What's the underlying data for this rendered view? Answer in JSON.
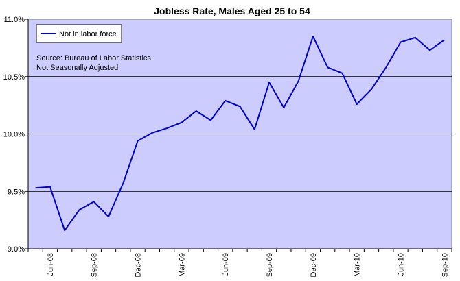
{
  "chart_data": {
    "type": "line",
    "title": "Jobless Rate, Males Aged 25 to 54",
    "xlabel": "",
    "ylabel": "",
    "ylim": [
      9.0,
      11.0
    ],
    "ytick_labels": [
      "9.0%",
      "9.5%",
      "10.0%",
      "10.5%",
      "11.0%"
    ],
    "ytick_values": [
      9.0,
      9.5,
      10.0,
      10.5,
      11.0
    ],
    "xtick_labels": [
      "Jun-08",
      "Sep-08",
      "Dec-08",
      "Mar-09",
      "Jun-09",
      "Sep-09",
      "Dec-09",
      "Mar-10",
      "Jun-10",
      "Sep-10"
    ],
    "xtick_months": [
      "2008-06",
      "2008-09",
      "2008-12",
      "2009-03",
      "2009-06",
      "2009-09",
      "2009-12",
      "2010-03",
      "2010-06",
      "2010-09"
    ],
    "grid": "horizontal",
    "legend_placement": "top-left",
    "annotation_lines": [
      "Source: Bureau of Labor Statistics",
      "Not Seasonally Adjusted"
    ],
    "months": [
      "2008-05",
      "2008-06",
      "2008-07",
      "2008-08",
      "2008-09",
      "2008-10",
      "2008-11",
      "2008-12",
      "2009-01",
      "2009-02",
      "2009-03",
      "2009-04",
      "2009-05",
      "2009-06",
      "2009-07",
      "2009-08",
      "2009-09",
      "2009-10",
      "2009-11",
      "2009-12",
      "2010-01",
      "2010-02",
      "2010-03",
      "2010-04",
      "2010-05",
      "2010-06",
      "2010-07",
      "2010-08",
      "2010-09"
    ],
    "series": [
      {
        "name": "Not in labor force",
        "color": "#0000cc",
        "values": [
          9.53,
          9.54,
          9.16,
          9.34,
          9.41,
          9.28,
          9.57,
          9.94,
          10.01,
          10.05,
          10.1,
          10.2,
          10.12,
          10.29,
          10.24,
          10.04,
          10.45,
          10.23,
          10.46,
          10.85,
          10.58,
          10.53,
          10.26,
          10.39,
          10.58,
          10.8,
          10.84,
          10.73,
          10.82
        ]
      }
    ]
  },
  "colors": {
    "plot_background": "#ccccff",
    "plot_border": "#808080",
    "grid": "#000000",
    "line": "#0000cc"
  }
}
